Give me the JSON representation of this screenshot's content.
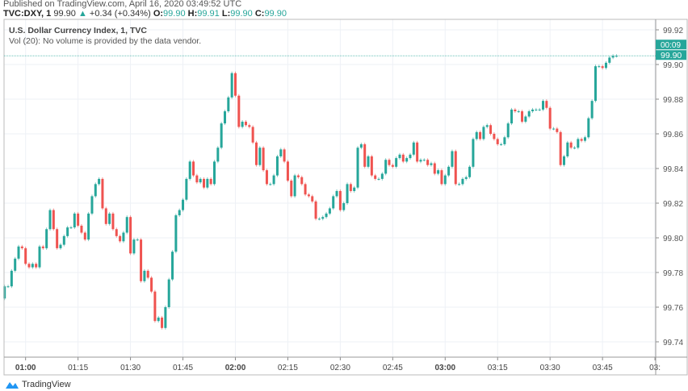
{
  "header": {
    "published": "Published on TradingView.com, April 16, 2020 03:49:52 UTC",
    "symbol": "TVC:DXY, 1",
    "last": "99.90",
    "change": "+0.34 (+0.34%)",
    "o_label": "O:",
    "o": "99.90",
    "h_label": "H:",
    "h": "99.91",
    "l_label": "L:",
    "l": "99.90",
    "c_label": "C:",
    "c": "99.90"
  },
  "legend": {
    "title": "U.S. Dollar Currency Index, 1, TVC",
    "volume_note": "Vol (20): No volume is provided by the data vendor."
  },
  "price_label": "99.90",
  "countdown": "00:09",
  "footer": {
    "brand": "TradingView"
  },
  "colors": {
    "up": "#26a69a",
    "down": "#ef5350",
    "grid": "#eef1f6"
  },
  "chart_data": {
    "type": "candlestick",
    "x_start": "00:54",
    "interval_minutes": 1,
    "first_open": 99.765,
    "closes": [
      99.772,
      99.772,
      99.781,
      99.788,
      99.795,
      99.794,
      99.785,
      99.783,
      99.785,
      99.783,
      99.795,
      99.794,
      99.805,
      99.816,
      99.805,
      99.794,
      99.796,
      99.801,
      99.806,
      99.806,
      99.814,
      99.807,
      99.803,
      99.799,
      99.814,
      99.824,
      99.831,
      99.834,
      99.817,
      99.808,
      99.814,
      99.805,
      99.801,
      99.798,
      99.803,
      99.812,
      99.791,
      99.799,
      99.799,
      99.775,
      99.781,
      99.777,
      99.769,
      99.752,
      99.754,
      99.748,
      99.76,
      99.776,
      99.792,
      99.813,
      99.816,
      99.822,
      99.834,
      99.844,
      99.836,
      99.832,
      99.834,
      99.829,
      99.834,
      99.831,
      99.844,
      99.852,
      99.866,
      99.873,
      99.881,
      99.895,
      99.882,
      99.864,
      99.867,
      99.865,
      99.864,
      99.855,
      99.842,
      99.852,
      99.839,
      99.831,
      99.831,
      99.836,
      99.847,
      99.851,
      99.844,
      99.833,
      99.824,
      99.836,
      99.835,
      99.831,
      99.825,
      99.824,
      99.821,
      99.811,
      99.811,
      99.812,
      99.814,
      99.817,
      99.824,
      99.827,
      99.816,
      99.82,
      99.831,
      99.827,
      99.829,
      99.852,
      99.854,
      99.841,
      99.847,
      99.836,
      99.834,
      99.834,
      99.837,
      99.845,
      99.842,
      99.841,
      99.846,
      99.848,
      99.844,
      99.846,
      99.848,
      99.855,
      99.844,
      99.845,
      99.845,
      99.842,
      99.843,
      99.837,
      99.839,
      99.831,
      99.836,
      99.841,
      99.85,
      99.831,
      99.831,
      99.834,
      99.835,
      99.841,
      99.857,
      99.861,
      99.857,
      99.864,
      99.865,
      99.86,
      99.857,
      99.854,
      99.854,
      99.858,
      99.866,
      99.874,
      99.873,
      99.873,
      99.867,
      99.87,
      99.873,
      99.874,
      99.874,
      99.874,
      99.879,
      99.875,
      99.863,
      99.863,
      99.861,
      99.842,
      99.847,
      99.855,
      99.852,
      99.852,
      99.857,
      99.856,
      99.858,
      99.869,
      99.879,
      99.899,
      99.899,
      99.898,
      99.901,
      99.904,
      99.905,
      99.905
    ],
    "last_price": 99.905,
    "y_ticks": [
      "99.92",
      "99.90",
      "99.88",
      "99.86",
      "99.84",
      "99.82",
      "99.80",
      "99.78",
      "99.76",
      "99.74"
    ],
    "ylim": [
      99.74,
      99.92
    ],
    "x_ticks": [
      {
        "label": "01:00",
        "bold": true
      },
      {
        "label": "01:15"
      },
      {
        "label": "01:30"
      },
      {
        "label": "01:45"
      },
      {
        "label": "02:00",
        "bold": true
      },
      {
        "label": "02:15"
      },
      {
        "label": "02:30"
      },
      {
        "label": "02:45"
      },
      {
        "label": "03:00",
        "bold": true
      },
      {
        "label": "03:15"
      },
      {
        "label": "03:30"
      },
      {
        "label": "03:45"
      },
      {
        "label": "03:"
      }
    ],
    "grid": true
  }
}
